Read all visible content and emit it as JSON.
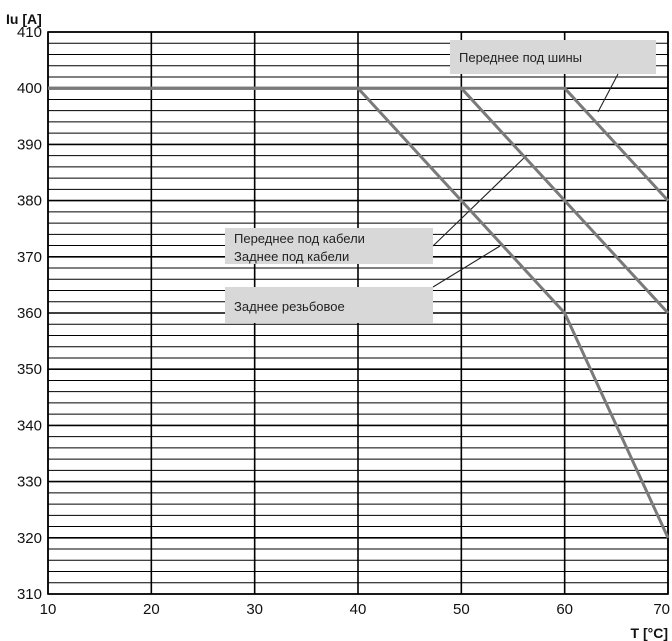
{
  "chart_data": {
    "type": "line",
    "title": "",
    "ylabel": "Iu [A]",
    "xlabel": "T [°C]",
    "xlim": [
      10,
      70
    ],
    "ylim": [
      310,
      410
    ],
    "x_ticks": [
      10,
      20,
      30,
      40,
      50,
      60,
      70
    ],
    "y_ticks": [
      310,
      320,
      330,
      340,
      350,
      360,
      370,
      380,
      390,
      400,
      410
    ],
    "minor_y_step": 2,
    "grid": true,
    "series": [
      {
        "points": [
          [
            10,
            400
          ],
          [
            60,
            400
          ],
          [
            70,
            380
          ]
        ]
      },
      {
        "points": [
          [
            10,
            400
          ],
          [
            50,
            400
          ],
          [
            70,
            360
          ]
        ]
      },
      {
        "points": [
          [
            10,
            400
          ],
          [
            40,
            400
          ],
          [
            50,
            380
          ],
          [
            60,
            360
          ],
          [
            70,
            320
          ]
        ]
      }
    ],
    "annotations": [
      {
        "lines": [
          "Переднее под шины"
        ]
      },
      {
        "lines": [
          "Переднее под кабели",
          "Заднее под кабели"
        ]
      },
      {
        "lines": [
          "Заднее резьбовое"
        ]
      }
    ],
    "colors": {
      "grid": "#000000",
      "line": "#7a7a7a",
      "label_box": "#d8d8d8"
    }
  }
}
